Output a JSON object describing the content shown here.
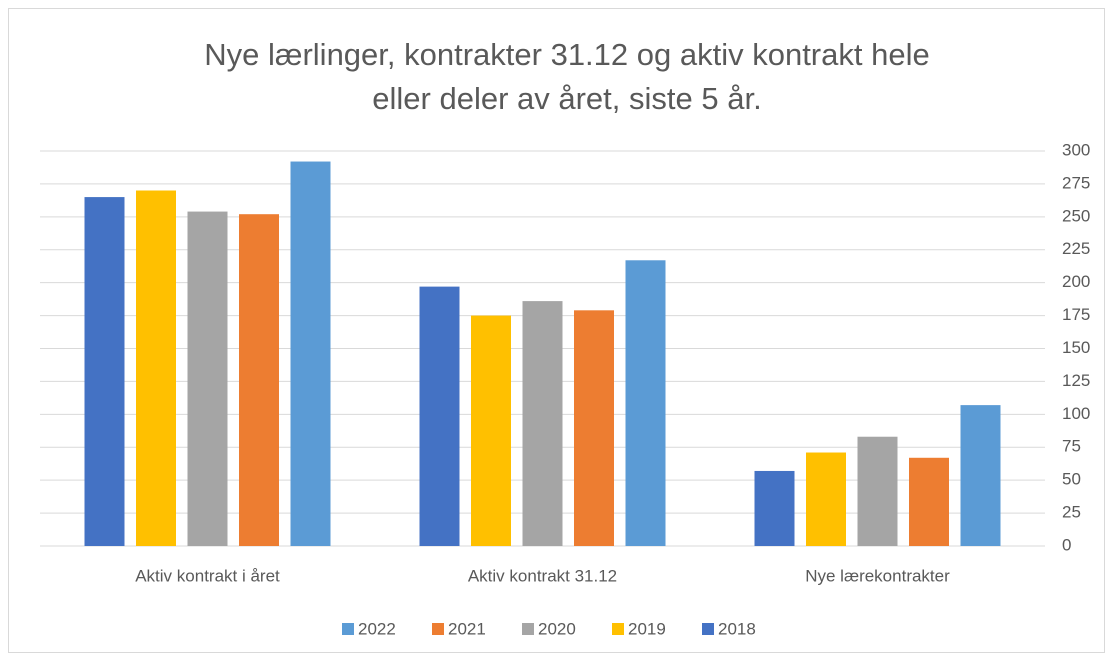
{
  "chart_data": {
    "type": "bar",
    "title": [
      "Nye lærlinger, kontrakter 31.12 og aktiv kontrakt hele",
      "eller deler av året, siste 5 år."
    ],
    "categories": [
      "Aktiv kontrakt i året",
      "Aktiv kontrakt 31.12",
      "Nye lærekontrakter"
    ],
    "series": [
      {
        "name": "2018",
        "color": "#4472c4",
        "values": [
          265,
          197,
          57
        ]
      },
      {
        "name": "2019",
        "color": "#ffc000",
        "values": [
          270,
          175,
          71
        ]
      },
      {
        "name": "2020",
        "color": "#a5a5a5",
        "values": [
          254,
          186,
          83
        ]
      },
      {
        "name": "2021",
        "color": "#ed7d31",
        "values": [
          252,
          179,
          67
        ]
      },
      {
        "name": "2022",
        "color": "#5b9bd5",
        "values": [
          292,
          217,
          107
        ]
      }
    ],
    "ylim": [
      0,
      300
    ],
    "yticks": [
      0,
      25,
      50,
      75,
      100,
      125,
      150,
      175,
      200,
      225,
      250,
      275,
      300
    ],
    "grid": true,
    "legend": "bottom",
    "y_axis_side": "right"
  }
}
